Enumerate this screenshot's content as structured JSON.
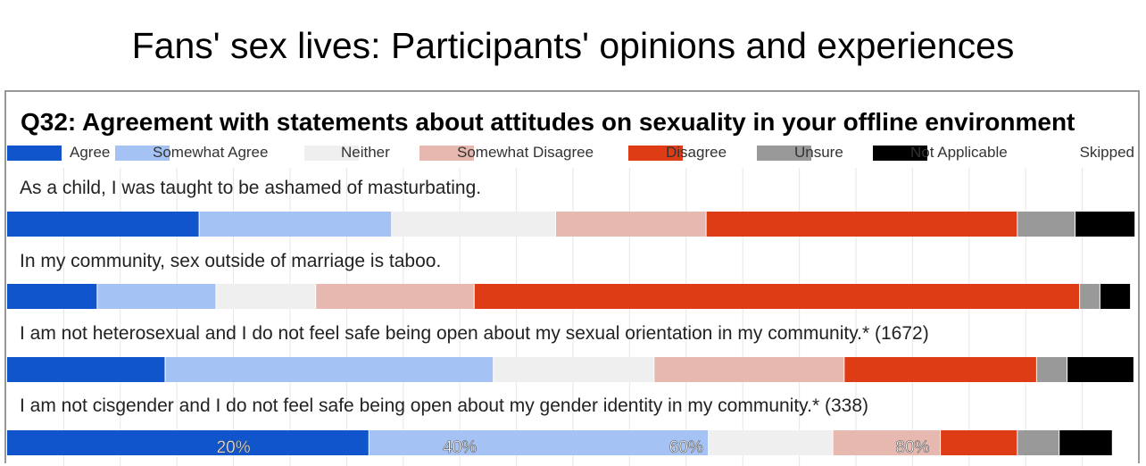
{
  "page_title": "Fans' sex lives: Participants' opinions and experiences",
  "chart_data": {
    "type": "bar",
    "orientation": "horizontal-stacked-100",
    "title": "Q32: Agreement with statements about attitudes on sexuality in your offline environment",
    "legend_position": "top",
    "legend": [
      {
        "name": "Agree",
        "color": "#1155cc"
      },
      {
        "name": "Somewhat Agree",
        "color": "#a4c2f4"
      },
      {
        "name": "Neither",
        "color": "#efefef"
      },
      {
        "name": "Somewhat Disagree",
        "color": "#e6b8af"
      },
      {
        "name": "Disagree",
        "color": "#dd3c14"
      },
      {
        "name": "Unsure",
        "color": "#999999"
      },
      {
        "name": "Not Applicable",
        "color": "#000000"
      },
      {
        "name": "Skipped",
        "color": "#ffffff"
      }
    ],
    "categories": [
      "As a child, I was taught to be ashamed of masturbating.",
      "In my community, sex outside of marriage is taboo.",
      "I am not heterosexual and I do not feel safe being open about my sexual orientation in my community.* (1672)",
      "I am not cisgender and I do not feel safe being open about my gender identity in my community.* (338)"
    ],
    "series": [
      {
        "name": "Agree",
        "values": [
          17.0,
          8.0,
          14.0,
          32.0
        ]
      },
      {
        "name": "Somewhat Agree",
        "values": [
          17.0,
          10.5,
          29.0,
          30.0
        ]
      },
      {
        "name": "Neither",
        "values": [
          14.5,
          8.8,
          14.2,
          11.0
        ]
      },
      {
        "name": "Somewhat Disagree",
        "values": [
          13.3,
          14.0,
          16.8,
          9.5
        ]
      },
      {
        "name": "Disagree",
        "values": [
          27.5,
          53.5,
          17.0,
          6.8
        ]
      },
      {
        "name": "Unsure",
        "values": [
          5.1,
          1.8,
          2.7,
          3.7
        ]
      },
      {
        "name": "Not Applicable",
        "values": [
          5.3,
          2.7,
          5.9,
          4.7
        ]
      },
      {
        "name": "Skipped",
        "values": [
          0.3,
          0.7,
          0.4,
          2.3
        ]
      }
    ],
    "x_ticks": [
      "20%",
      "40%",
      "60%",
      "80%"
    ],
    "xlim": [
      0,
      100
    ],
    "grid": true
  }
}
